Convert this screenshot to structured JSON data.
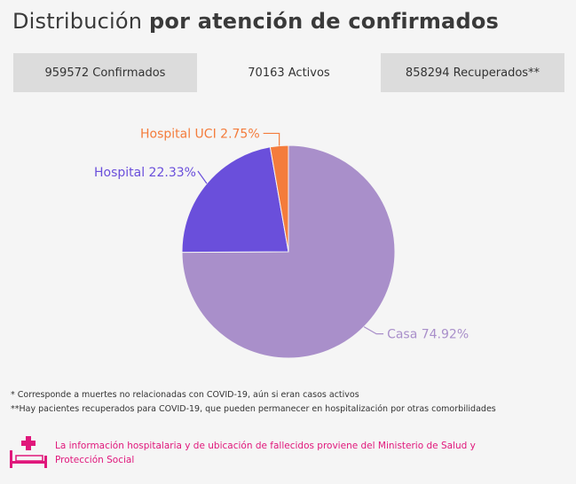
{
  "header": {
    "title_regular": "Distribución",
    "title_bold": "por atención de confirmados"
  },
  "tabs": [
    {
      "label": "959572 Confirmados",
      "active": false
    },
    {
      "label": "70163 Activos",
      "active": true
    },
    {
      "label": "858294 Recuperados**",
      "active": false
    }
  ],
  "chart_data": {
    "type": "pie",
    "slices": [
      {
        "label": "Casa 74.92%",
        "value": 74.92,
        "color": "#a98fca",
        "label_color": "#a98fca"
      },
      {
        "label": "Hospital 22.33%",
        "value": 22.33,
        "color": "#6a4fdb",
        "label_color": "#6a4fdb"
      },
      {
        "label": "Hospital UCI 2.75%",
        "value": 2.75,
        "color": "#f47c3c",
        "label_color": "#f47c3c"
      }
    ]
  },
  "notes": {
    "note1": "* Corresponde a muertes no relacionadas con COVID-19, aún si eran casos activos",
    "note2": "**Hay pacientes recuperados para COVID-19, que pueden permanecer en hospitalización por otras comorbilidades"
  },
  "footer": {
    "icon": "hospital-bed-icon",
    "line1": "La información hospitalaria y de ubicación de fallecidos proviene del Ministerio de Salud y",
    "line2": "Protección Social",
    "color": "#e0177b"
  }
}
